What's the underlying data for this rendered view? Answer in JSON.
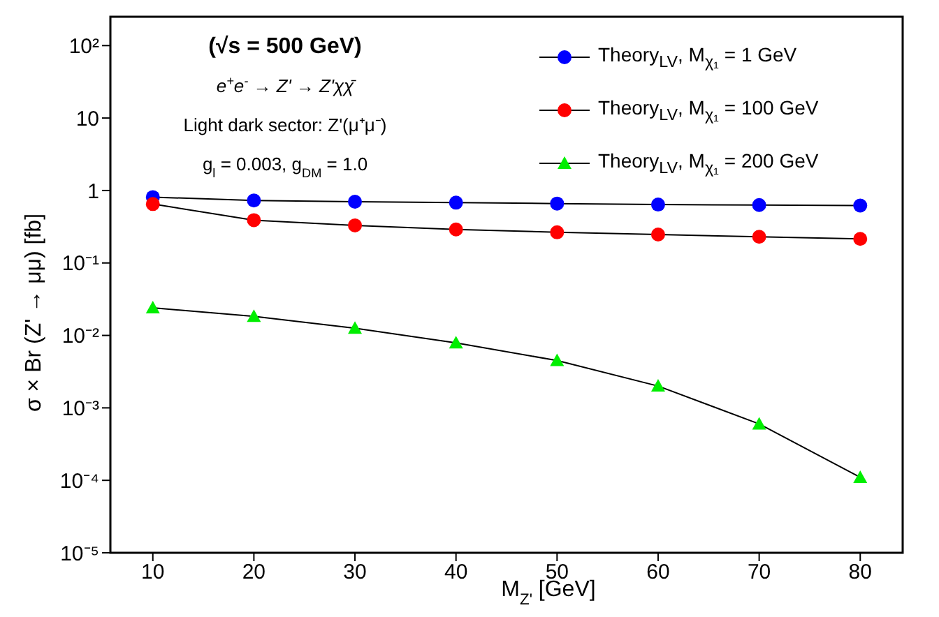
{
  "chart_data": {
    "type": "line",
    "annotations": [
      "(√s = 500 GeV)",
      "e$^{+}$e$^{-}$ → Z' → Z'χχ̄",
      "Light dark sector: Z'(μ⁺μ⁻)",
      "g$_{l}$ = 0.003, g$_{DM}$ = 1.0"
    ],
    "xlabel": "M$_{Z'}$ [GeV]",
    "ylabel": "σ × Br (Z' → μμ) [fb]",
    "x": [
      10,
      20,
      30,
      40,
      50,
      60,
      70,
      80
    ],
    "series": [
      {
        "name": "Theory$_{LV}$, M$_{χ₁}$ = 1 GeV",
        "color": "#0000ff",
        "marker": "circle",
        "values": [
          0.81,
          0.73,
          0.7,
          0.68,
          0.66,
          0.64,
          0.63,
          0.62
        ]
      },
      {
        "name": "Theory$_{LV}$, M$_{χ₁}$ = 100 GeV",
        "color": "#ff0000",
        "marker": "circle",
        "values": [
          0.65,
          0.39,
          0.33,
          0.29,
          0.265,
          0.247,
          0.23,
          0.215
        ]
      },
      {
        "name": "Theory$_{LV}$, M$_{χ₁}$ = 200 GeV",
        "color": "#00ee00",
        "marker": "triangle",
        "values": [
          0.024,
          0.0183,
          0.0126,
          0.0079,
          0.0045,
          0.002,
          0.0006,
          0.00011
        ]
      }
    ],
    "log": "y",
    "grid": false,
    "legend": "top right",
    "line_style": "solid",
    "xlim": [
      5.8,
      84.2
    ],
    "xticks": [
      10,
      20,
      30,
      40,
      50,
      60,
      70,
      80
    ],
    "ylim": [
      1e-05,
      250
    ],
    "yticks": [
      {
        "value": 1e-05,
        "label": "10⁻⁵"
      },
      {
        "value": 0.0001,
        "label": "10⁻⁴"
      },
      {
        "value": 0.001,
        "label": "10⁻³"
      },
      {
        "value": 0.01,
        "label": "10⁻²"
      },
      {
        "value": 0.1,
        "label": "10⁻¹"
      },
      {
        "value": 1,
        "label": "1"
      },
      {
        "value": 10,
        "label": "10"
      },
      {
        "value": 100,
        "label": "10²"
      }
    ]
  }
}
